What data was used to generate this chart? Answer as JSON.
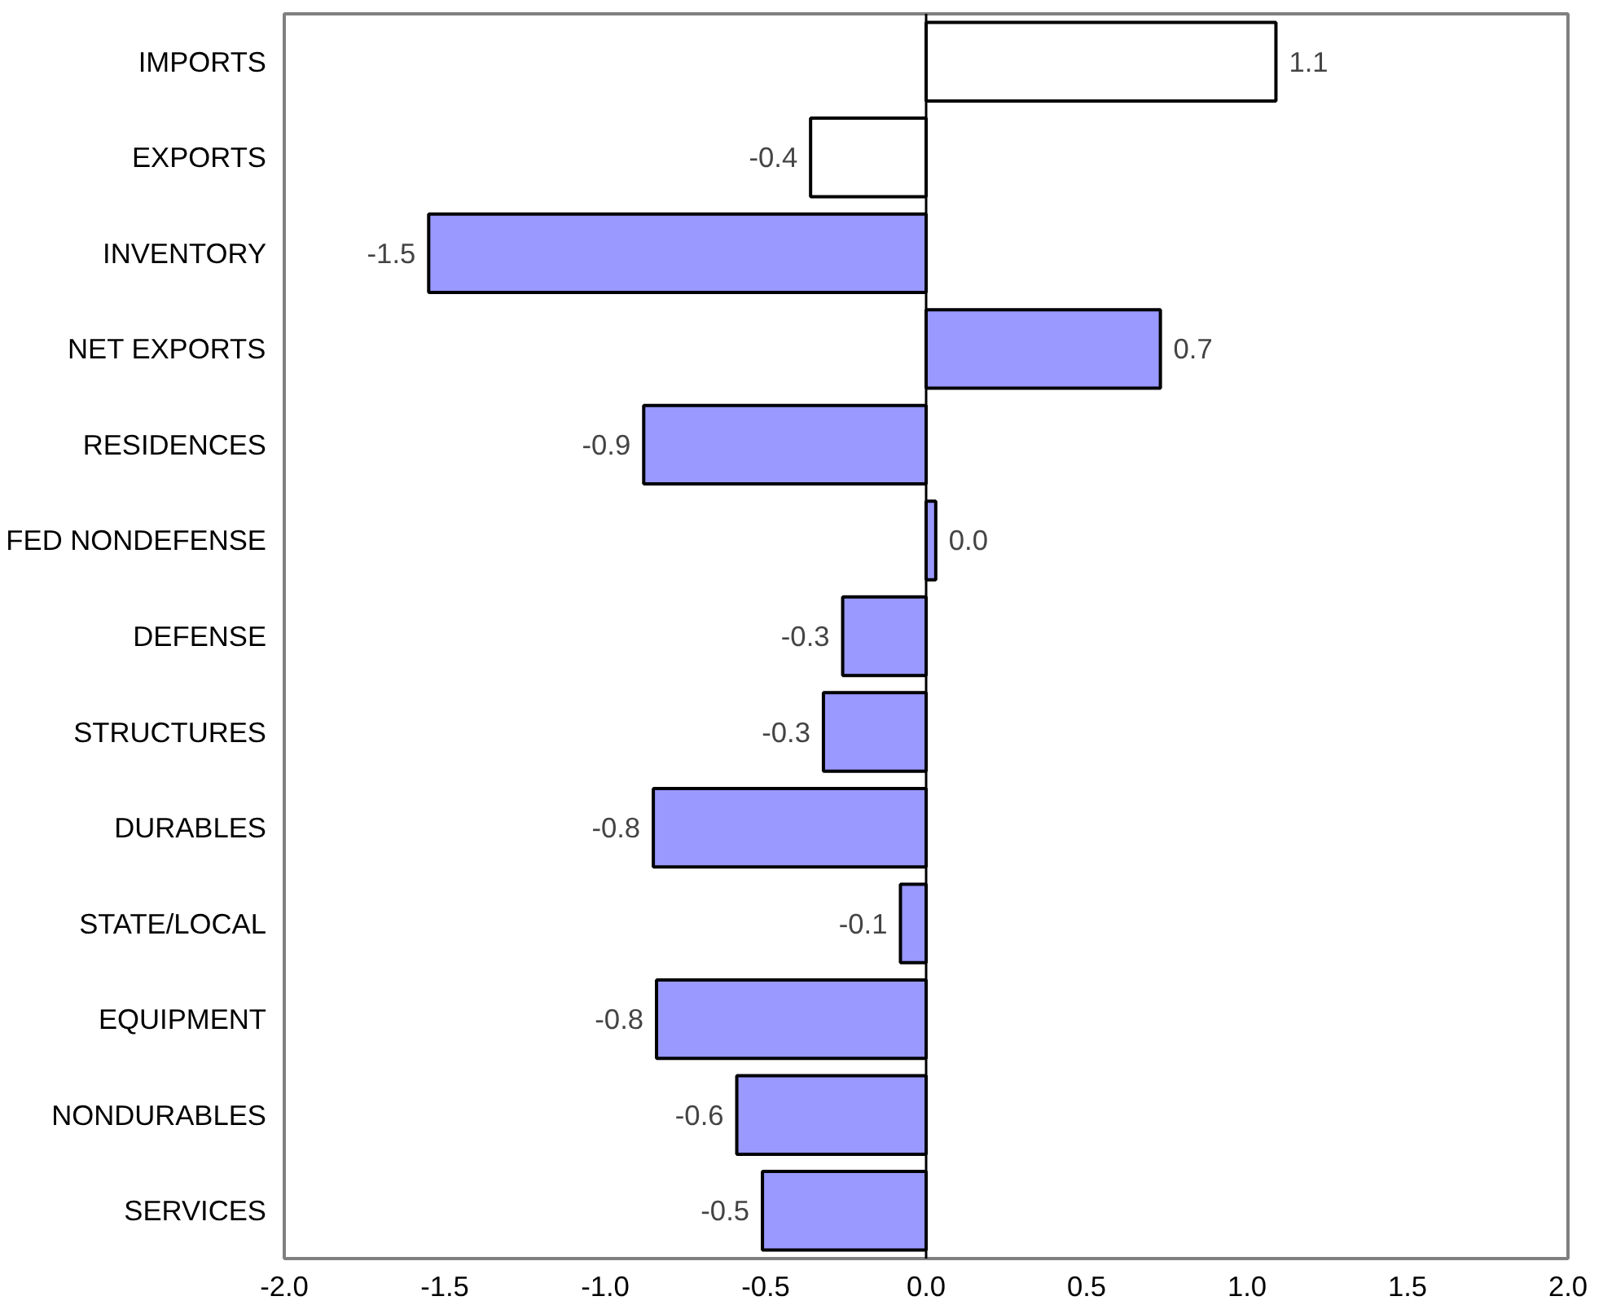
{
  "chart_data": {
    "type": "bar",
    "orientation": "horizontal",
    "categories": [
      "IMPORTS",
      "EXPORTS",
      "INVENTORY",
      "NET EXPORTS",
      "RESIDENCES",
      "FED NONDEFENSE",
      "DEFENSE",
      "STRUCTURES",
      "DURABLES",
      "STATE/LOCAL",
      "EQUIPMENT",
      "NONDURABLES",
      "SERVICES"
    ],
    "values": [
      1.09,
      -0.36,
      -1.55,
      0.73,
      -0.88,
      0.03,
      -0.26,
      -0.32,
      -0.85,
      -0.08,
      -0.84,
      -0.59,
      -0.51
    ],
    "value_labels": [
      "1.1",
      "-0.4",
      "-1.5",
      "0.7",
      "-0.9",
      "0.0",
      "-0.3",
      "-0.3",
      "-0.8",
      "-0.1",
      "-0.8",
      "-0.6",
      "-0.5"
    ],
    "colors": [
      "#ffffff",
      "#ffffff",
      "#9999ff",
      "#9999ff",
      "#9999ff",
      "#9999ff",
      "#9999ff",
      "#9999ff",
      "#9999ff",
      "#9999ff",
      "#9999ff",
      "#9999ff",
      "#9999ff"
    ],
    "xlim": [
      -2.0,
      2.0
    ],
    "xticks": [
      {
        "value": -2,
        "label": "-2.0"
      },
      {
        "value": -1.5,
        "label": "-1.5"
      },
      {
        "value": -1,
        "label": "-1.0"
      },
      {
        "value": -0.5,
        "label": "-0.5"
      },
      {
        "value": 0,
        "label": "0.0"
      },
      {
        "value": 0.5,
        "label": "0.5"
      },
      {
        "value": 1,
        "label": "1.0"
      },
      {
        "value": 1.5,
        "label": "1.5"
      },
      {
        "value": 2,
        "label": "2.0"
      }
    ],
    "ref_lines": [
      {
        "axis": "x",
        "value": 0,
        "color": "#000000"
      }
    ]
  }
}
